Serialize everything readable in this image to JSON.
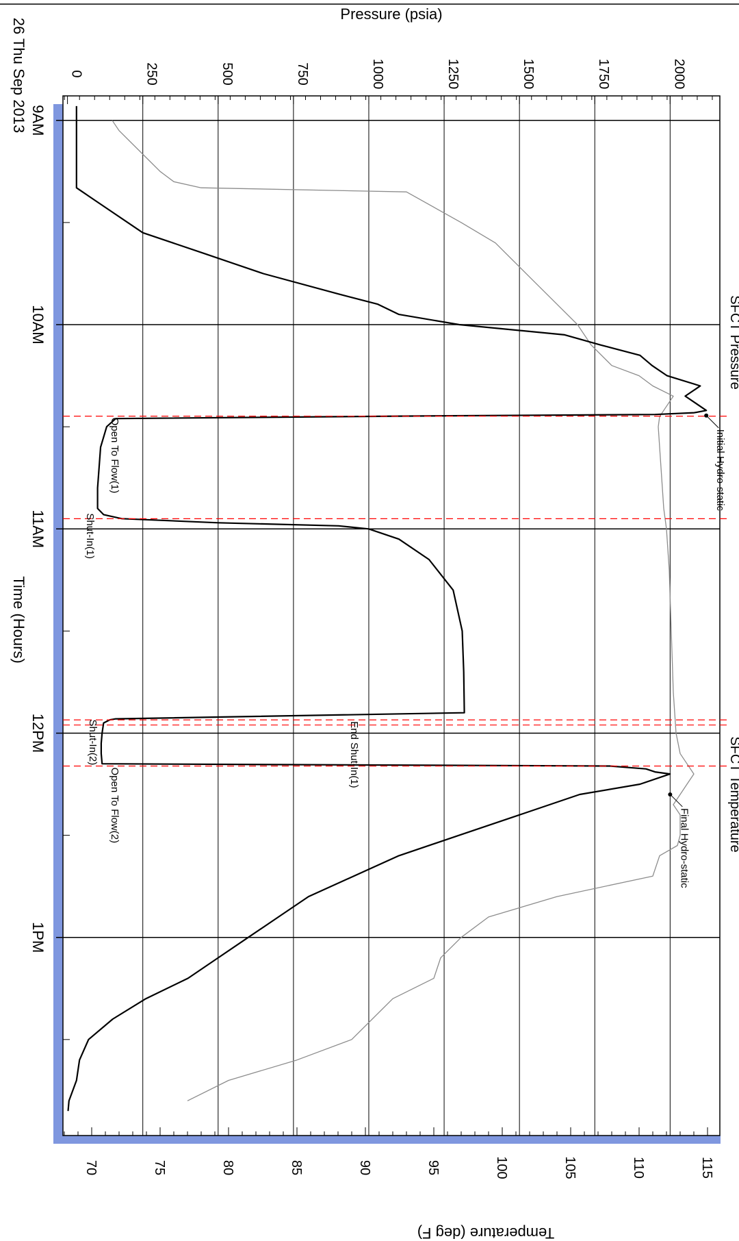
{
  "chart_data": {
    "type": "line",
    "orientation": "rotated-90",
    "date_label": "26 Thu Sep 2013",
    "x_axis": {
      "title": "Time (Hours)",
      "range_hours": [
        8.88,
        13.97
      ],
      "major_ticks": [
        {
          "value": 9,
          "label": "9AM"
        },
        {
          "value": 10,
          "label": "10AM"
        },
        {
          "value": 11,
          "label": "11AM"
        },
        {
          "value": 12,
          "label": "12PM"
        },
        {
          "value": 13,
          "label": "1PM"
        }
      ],
      "minor_ticks": [
        9.5,
        10.5,
        11.5,
        12.5,
        13.5
      ]
    },
    "y_axis_left": {
      "title": "Pressure (psia)",
      "range": [
        -15,
        2165
      ],
      "ticks": [
        0,
        250,
        500,
        750,
        1000,
        1250,
        1500,
        1750,
        2000
      ],
      "tick_labels": [
        "0",
        "250",
        "500",
        "750",
        "1000",
        "1250",
        "1500",
        "1750",
        "2000"
      ]
    },
    "y_axis_right": {
      "title": "Temperature (deg F)",
      "range": [
        67.9,
        115.9
      ],
      "ticks": [
        70,
        75,
        80,
        85,
        90,
        95,
        100,
        105,
        110,
        115
      ],
      "tick_labels": [
        "70",
        "75",
        "80",
        "85",
        "90",
        "95",
        "100",
        "105",
        "110",
        "115"
      ]
    },
    "grid": true,
    "colors": {
      "pressure": "#000000",
      "temperature": "#8c8c8c",
      "events": "#ff0000",
      "grid": "#000000",
      "band": "#7f97df"
    },
    "series": [
      {
        "name": "SFCT Pressure",
        "axis": "left",
        "x": [
          8.93,
          9.33,
          9.35,
          9.4,
          9.55,
          9.65,
          9.75,
          9.85,
          9.9,
          9.95,
          10.0,
          10.05,
          10.1,
          10.15,
          10.2,
          10.25,
          10.3,
          10.35,
          10.38,
          10.42,
          10.431,
          10.44,
          10.448,
          10.46,
          10.5,
          10.6,
          10.7,
          10.8,
          10.9,
          10.93,
          10.95,
          10.97,
          10.985,
          11.0,
          11.05,
          11.15,
          11.3,
          11.5,
          11.7,
          11.9,
          11.93,
          11.935,
          11.95,
          12.0,
          12.05,
          12.1,
          12.15,
          12.161,
          12.175,
          12.19,
          12.2,
          12.25,
          12.3,
          12.4,
          12.5,
          12.6,
          12.7,
          12.8,
          12.9,
          13.0,
          13.1,
          13.2,
          13.3,
          13.4,
          13.5,
          13.6,
          13.7,
          13.8,
          13.85
        ],
        "values": [
          30,
          30,
          50,
          100,
          250,
          450,
          650,
          900,
          1030,
          1100,
          1300,
          1650,
          1770,
          1900,
          1940,
          1990,
          2100,
          2050,
          2080,
          2120,
          2080,
          1950,
          1100,
          160,
          130,
          110,
          105,
          100,
          100,
          120,
          180,
          500,
          900,
          1000,
          1100,
          1200,
          1280,
          1310,
          1315,
          1317,
          160,
          140,
          120,
          115,
          112,
          112,
          115,
          1800,
          1920,
          1950,
          2000,
          1900,
          1700,
          1500,
          1300,
          1100,
          950,
          800,
          700,
          600,
          500,
          400,
          260,
          150,
          70,
          40,
          30,
          5,
          2
        ]
      },
      {
        "name": "SFCT Temperature",
        "axis": "right",
        "x": [
          9.0,
          9.05,
          9.15,
          9.25,
          9.3,
          9.33,
          9.35,
          9.5,
          9.6,
          9.7,
          9.8,
          9.9,
          10.0,
          10.1,
          10.2,
          10.25,
          10.3,
          10.35,
          10.4,
          10.45,
          10.5,
          10.6,
          10.7,
          10.8,
          10.9,
          11.0,
          11.2,
          11.4,
          11.6,
          11.8,
          11.9,
          12.0,
          12.1,
          12.15,
          12.2,
          12.25,
          12.3,
          12.35,
          12.4,
          12.5,
          12.55,
          12.6,
          12.7,
          12.8,
          12.9,
          13.0,
          13.1,
          13.2,
          13.3,
          13.4,
          13.5,
          13.6,
          13.7,
          13.8
        ],
        "values": [
          71.5,
          72,
          73.5,
          75,
          76,
          78,
          93,
          97,
          99.5,
          101,
          102.5,
          104,
          105.5,
          106.5,
          108,
          110,
          111,
          112.5,
          112,
          111.5,
          111.4,
          111.5,
          111.6,
          111.7,
          111.8,
          112,
          112.2,
          112.3,
          112.4,
          112.5,
          112.6,
          112.7,
          113,
          113.5,
          114,
          113.5,
          113,
          112.5,
          113,
          113,
          112.8,
          111.5,
          111,
          104,
          99,
          97,
          95.5,
          95,
          92,
          90.5,
          89,
          85,
          80,
          77
        ]
      }
    ],
    "events": [
      {
        "label": "Open To Flow(1)",
        "x": 10.448
      },
      {
        "label": "Shut-In(1)",
        "x": 10.95
      },
      {
        "label": "End Shut-In(1)",
        "x": 11.935
      },
      {
        "label": "Shut-In(2)",
        "x": 11.96
      },
      {
        "label": "Open To Flow(2)",
        "x": 12.161
      }
    ],
    "annotations": [
      {
        "label": "Initial Hydro-static",
        "x": 10.445,
        "y": 2120
      },
      {
        "label": "Final Hydro-static",
        "x": 12.3,
        "y": 2000
      }
    ],
    "legend_labels": [
      "SFCT Pressure",
      "SFCT Temperature"
    ]
  }
}
